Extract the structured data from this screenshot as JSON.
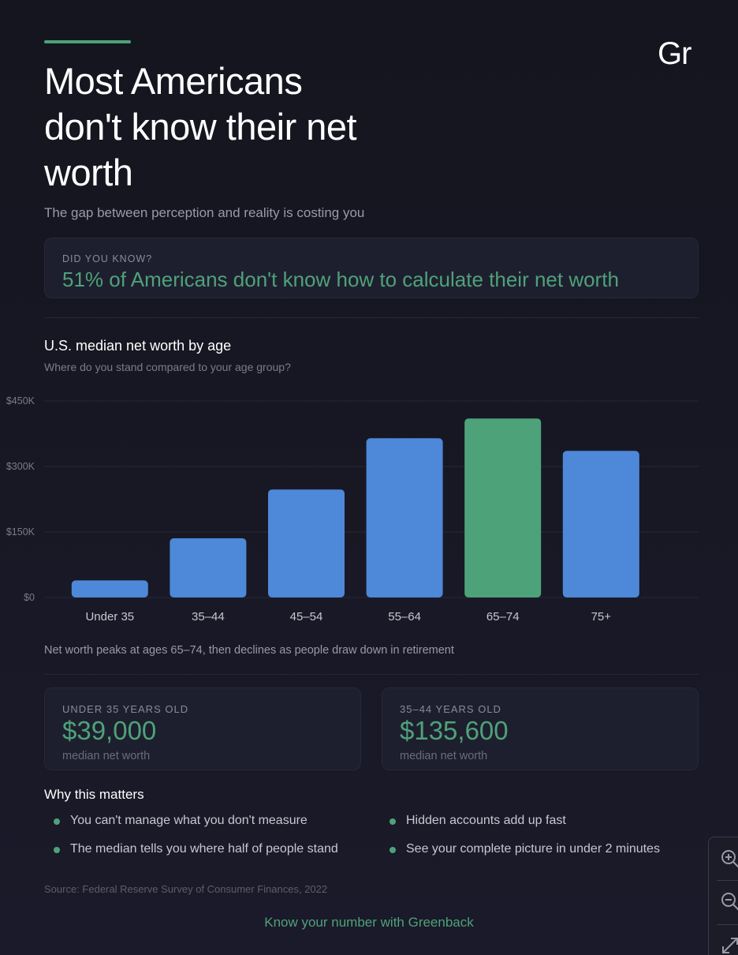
{
  "logo": "Gr",
  "header": {
    "title": "Most Americans don't know their net worth",
    "subtitle": "The gap between perception and reality is costing you"
  },
  "callout": {
    "label": "DID YOU KNOW?",
    "stat": "51% of Americans don't know how to calculate their net worth"
  },
  "chart": {
    "title": "U.S. median net worth by age",
    "subtitle": "Where do you stand compared to your age group?",
    "note": "Net worth peaks at ages 65–74, then declines as people draw down in retirement"
  },
  "chart_data": {
    "type": "bar",
    "categories": [
      "Under 35",
      "35–44",
      "45–54",
      "55–64",
      "65–74",
      "75+"
    ],
    "values": [
      39000,
      135600,
      247200,
      364500,
      409900,
      335600
    ],
    "highlight_index": 4,
    "ylim": [
      0,
      450000
    ],
    "yticks": [
      0,
      150000,
      300000,
      450000
    ],
    "ytick_labels": [
      "$0",
      "$150K",
      "$300K",
      "$450K"
    ],
    "grid": true,
    "colors": {
      "bar": "#4e88d8",
      "highlight": "#4ea27a",
      "grid": "#262736"
    }
  },
  "cards": [
    {
      "label": "UNDER 35 YEARS OLD",
      "value": "$39,000",
      "caption": "median net worth"
    },
    {
      "label": "35–44 YEARS OLD",
      "value": "$135,600",
      "caption": "median net worth"
    }
  ],
  "why": {
    "title": "Why this matters",
    "items": [
      "You can't manage what you don't measure",
      "The median tells you where half of people stand",
      "Hidden accounts add up fast",
      "See your complete picture in under 2 minutes"
    ]
  },
  "source": "Source: Federal Reserve Survey of Consumer Finances, 2022",
  "cta": "Know your number with Greenback",
  "zoom_controls": {
    "icons": [
      "zoom-in-icon",
      "zoom-out-icon",
      "expand-icon"
    ]
  }
}
